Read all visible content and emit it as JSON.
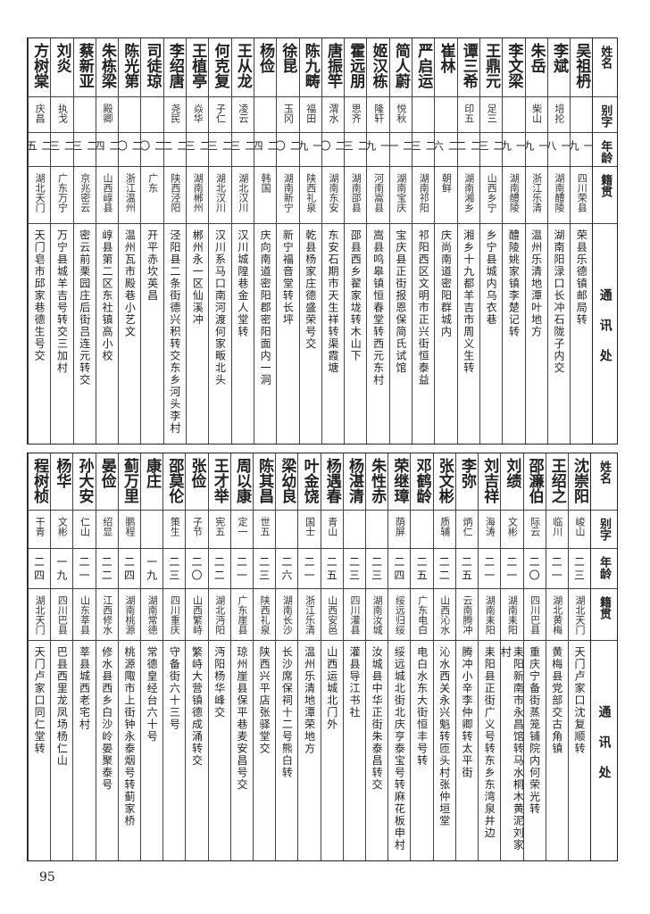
{
  "headers": {
    "name": "姓名",
    "alias": "别字",
    "age": "年龄",
    "native": "籍贯",
    "address": "通讯处"
  },
  "upper": {
    "rows": [
      {
        "name": "吴祖枬",
        "alias": "",
        "age": "一九",
        "native": "四川荣县",
        "address": "荣县乐德镇邮局转"
      },
      {
        "name": "李斌",
        "alias": "培抡",
        "age": "一八",
        "native": "湖南醴陵",
        "address": "湖南阳渌口长冲石陇子内交"
      },
      {
        "name": "朱岳",
        "alias": "柴山",
        "age": "一九",
        "native": "浙江乐清",
        "address": "温州乐清地潭叶地方"
      },
      {
        "name": "李文梁",
        "alias": "",
        "age": "一九",
        "native": "湖南醴陵",
        "address": "醴陵姚家镇李楚记转"
      },
      {
        "name": "王鼎元",
        "alias": "足三",
        "age": "二三",
        "native": "山西乡宁",
        "address": "乡宁县城内乌衣巷"
      },
      {
        "name": "谭三希",
        "alias": "印五",
        "age": "二二",
        "native": "湖南湘乡",
        "address": "湘乡十九都羊吉市周义生转"
      },
      {
        "name": "崔林",
        "alias": "",
        "age": "二六",
        "native": "朝鲜",
        "address": "庆尚南道密阳群城内"
      },
      {
        "name": "严启运",
        "alias": "",
        "age": "二三",
        "native": "湖南祁阳",
        "address": "祁阳西区文明市正兴街恒泰益"
      },
      {
        "name": "简人蔚",
        "alias": "悦秋",
        "age": "二一",
        "native": "湖南宝庆",
        "address": "宝庆县正街报恩保简氏试馆"
      },
      {
        "name": "姬汉栋",
        "alias": "隆轩",
        "age": "一九",
        "native": "河南嵩县",
        "address": "嵩县鸣皋镇恒春堂转西元东村"
      },
      {
        "name": "霍远朋",
        "alias": "思齐",
        "age": "二三",
        "native": "湖南邵县",
        "address": "邵县西乡翟家垅转木山下"
      },
      {
        "name": "唐振竿",
        "alias": "渭水",
        "age": "二〇",
        "native": "湖南东安",
        "address": "东安石期市天生祥转渠霞塘"
      },
      {
        "name": "陈九畴",
        "alias": "福田",
        "age": "一九",
        "native": "陕西礼泉",
        "address": "乾县杨家庄德盛荣号交"
      },
      {
        "name": "徐昆",
        "alias": "玉冈",
        "age": "二〇",
        "native": "湖南新宁",
        "address": "新宁福音堂转长坪"
      },
      {
        "name": "杨俭",
        "alias": "",
        "age": "二四",
        "native": "韩国",
        "address": "庆向南道密阳郡密阳面内一洞"
      },
      {
        "name": "王从龙",
        "alias": "凌云",
        "age": "二三",
        "native": "湖北汉川",
        "address": "汉川城隍巷金人堂转"
      },
      {
        "name": "何克复",
        "alias": "子仁",
        "age": "二三",
        "native": "湖北汉川",
        "address": "汉川系马口南河渡何家畈北头"
      },
      {
        "name": "王植亭",
        "alias": "焱华",
        "age": "二三",
        "native": "湖南郴州",
        "address": "郴州永一区仙溪冲"
      },
      {
        "name": "李绍唐",
        "alias": "尧民",
        "age": "二二",
        "native": "陕西泾阳",
        "address": "泾阳县二条街德兴积转交东乡河头李村"
      },
      {
        "name": "司徒琼",
        "alias": "",
        "age": "二〇",
        "native": "广东",
        "address": "开平赤坎英昌"
      },
      {
        "name": "陈光第",
        "alias": "",
        "age": "二〇",
        "native": "浙江温州",
        "address": "温州瓦市殿巷小艺文"
      },
      {
        "name": "朱栋梁",
        "alias": "殿卿",
        "age": "二四",
        "native": "山西崞县",
        "address": "崞县第二区东社镇高小校"
      },
      {
        "name": "蔡新亚",
        "alias": "",
        "age": "二三",
        "native": "京兆密云",
        "address": "密云前栗园庄后街吕连元转交"
      },
      {
        "name": "刘炎",
        "alias": "执戈",
        "age": "二三",
        "native": "广东万宁",
        "address": "万宁县城羊吉号转交三加村"
      },
      {
        "name": "方树棠",
        "alias": "庆昌",
        "age": "二五",
        "native": "湖北天门",
        "address": "天门皂市邱家巷德生号交"
      }
    ]
  },
  "lower": {
    "rows": [
      {
        "name": "沈崇阳",
        "alias": "峻山",
        "age": "二三",
        "native": "湖北天门",
        "address": "天门卢家口沈复顺转"
      },
      {
        "name": "王绍之",
        "alias": "临川",
        "age": "二一",
        "native": "湖北黄梅",
        "address": "黄梅县党部交古角镇"
      },
      {
        "name": "邵濂伯",
        "alias": "际云",
        "age": "二〇",
        "native": "四川巴县",
        "address": "重庆宁备街蒸笼铺院内何荣光转"
      },
      {
        "name": "刘绩",
        "alias": "文彬",
        "age": "二一",
        "native": "湖南耒阳",
        "address": "耒阳新南市永昌馆转马水桐木黄泥刘家村"
      },
      {
        "name": "刘吉祥",
        "alias": "海涛",
        "age": "二一",
        "native": "湖南耒阳",
        "address": "耒阳县正街广义号转东乡东湾泉井边"
      },
      {
        "name": "李弥",
        "alias": "炳仁",
        "age": "二五",
        "native": "云南腾冲",
        "address": "腾冲小辛李仲卿转太平街"
      },
      {
        "name": "张文彬",
        "alias": "质辅",
        "age": "二二",
        "native": "山西沁水",
        "address": "沁水西关永兴魁转匝头村张仲垣堂"
      },
      {
        "name": "邓鹤龄",
        "alias": "",
        "age": "二五",
        "native": "广东电白",
        "address": "电白水东大街恒丰号转"
      },
      {
        "name": "荣继璋",
        "alias": "荫屏",
        "age": "二四",
        "native": "绥远归绥",
        "address": "绥远城北街北庆亨泰宝号转麻花板申村"
      },
      {
        "name": "朱性赤",
        "alias": "",
        "age": "二三",
        "native": "湖南汝城",
        "address": "汝城县中华正街朱泰昌转交"
      },
      {
        "name": "杨湛清",
        "alias": "",
        "age": "二三",
        "native": "四川灌县",
        "address": "灌县导江书社"
      },
      {
        "name": "杨遇春",
        "alias": "青山",
        "age": "二五",
        "native": "山西安邑",
        "address": "山西运城北门外"
      },
      {
        "name": "叶金饶",
        "alias": "国士",
        "age": "二一",
        "native": "浙江乐清",
        "address": "温州乐清地潭荣地方"
      },
      {
        "name": "梁幼良",
        "alias": "",
        "age": "二六",
        "native": "湖南长沙",
        "address": "长沙席保祠十二号熊白转"
      },
      {
        "name": "陈其昌",
        "alias": "世五",
        "age": "二三",
        "native": "陕西礼泉",
        "address": "陕西兴平店张驿堂交"
      },
      {
        "name": "周以康",
        "alias": "定一",
        "age": "二一",
        "native": "广东崖县",
        "address": "琼州崖县保平巷麦安昌号交"
      },
      {
        "name": "王才举",
        "alias": "宪五",
        "age": "二二",
        "native": "湖北沔阳",
        "address": "沔阳杨华峰交"
      },
      {
        "name": "张俭",
        "alias": "子节",
        "age": "二〇",
        "native": "山西繁峙",
        "address": "繁峙大营镇德成涌转交"
      },
      {
        "name": "邵莫伦",
        "alias": "策生",
        "age": "二三",
        "native": "四川重庆",
        "address": "守备街六十三号"
      },
      {
        "name": "康庄",
        "alias": "",
        "age": "一九",
        "native": "湖南常德",
        "address": "常德皇经台六十号"
      },
      {
        "name": "蓟万里",
        "alias": "鹏程",
        "age": "二四",
        "native": "湖南桃源",
        "address": "桃源陬市上街钟永泰烟号转蓟家桥"
      },
      {
        "name": "晏俭",
        "alias": "绍显",
        "age": "二二",
        "native": "江西修水",
        "address": "修水县西乡白沙岭晏聚泰号"
      },
      {
        "name": "孙大安",
        "alias": "仁山",
        "age": "二一",
        "native": "山东莘县",
        "address": "莘县城西老宅村"
      },
      {
        "name": "杨华",
        "alias": "文彬",
        "age": "一九",
        "native": "四川巴县",
        "address": "巴县西里龙凤场杨仁山"
      },
      {
        "name": "程树桢",
        "alias": "干青",
        "age": "二四",
        "native": "湖北天门",
        "address": "天门卢家口同仁堂转"
      }
    ]
  },
  "page_number": "95"
}
